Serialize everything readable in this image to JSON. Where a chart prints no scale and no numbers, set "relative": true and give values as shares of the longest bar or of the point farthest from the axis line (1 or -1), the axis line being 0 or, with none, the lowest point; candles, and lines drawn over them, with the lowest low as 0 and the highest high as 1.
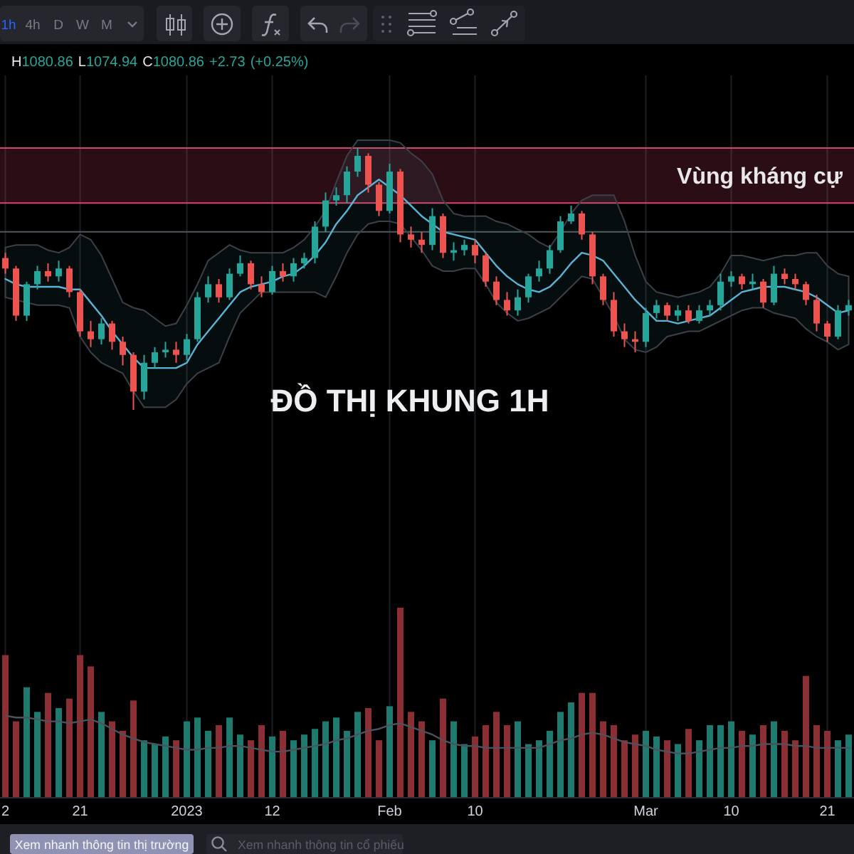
{
  "chart_data": [
    {
      "type": "candlestick",
      "title": "ĐỒ THỊ KHUNG 1H",
      "relative": true,
      "categories": [
        null,
        null,
        null,
        null,
        null,
        null,
        null,
        null,
        null,
        null,
        null,
        null,
        null,
        null,
        null,
        null,
        null,
        null,
        null,
        null,
        null,
        null,
        null,
        null,
        null,
        null,
        null,
        null,
        null,
        null,
        null,
        null,
        null,
        null,
        null,
        null,
        null,
        null,
        null,
        null,
        null,
        null,
        null,
        null,
        null,
        null,
        null,
        null,
        null,
        null,
        null,
        null,
        null,
        null,
        null,
        null,
        null,
        null,
        null,
        null,
        null,
        null,
        null,
        null,
        null,
        null,
        null,
        null,
        null,
        null,
        null,
        null,
        null,
        null,
        null,
        null,
        null,
        null,
        null,
        null
      ],
      "ohlc": [
        [
          0.58,
          0.6,
          0.52,
          0.54
        ],
        [
          0.54,
          0.55,
          0.34,
          0.36
        ],
        [
          0.36,
          0.49,
          0.34,
          0.48
        ],
        [
          0.48,
          0.55,
          0.46,
          0.53
        ],
        [
          0.53,
          0.56,
          0.49,
          0.51
        ],
        [
          0.51,
          0.57,
          0.49,
          0.54
        ],
        [
          0.54,
          0.55,
          0.43,
          0.45
        ],
        [
          0.45,
          0.46,
          0.28,
          0.3
        ],
        [
          0.3,
          0.34,
          0.24,
          0.27
        ],
        [
          0.27,
          0.35,
          0.25,
          0.33
        ],
        [
          0.33,
          0.34,
          0.23,
          0.26
        ],
        [
          0.26,
          0.28,
          0.17,
          0.21
        ],
        [
          0.21,
          0.22,
          0,
          0.07
        ],
        [
          0.07,
          0.21,
          0.04,
          0.18
        ],
        [
          0.18,
          0.24,
          0.16,
          0.22
        ],
        [
          0.22,
          0.26,
          0.2,
          0.23
        ],
        [
          0.23,
          0.26,
          0.18,
          0.21
        ],
        [
          0.21,
          0.29,
          0.19,
          0.27
        ],
        [
          0.27,
          0.45,
          0.26,
          0.43
        ],
        [
          0.43,
          0.51,
          0.41,
          0.48
        ],
        [
          0.48,
          0.5,
          0.41,
          0.43
        ],
        [
          0.43,
          0.54,
          0.42,
          0.52
        ],
        [
          0.52,
          0.59,
          0.51,
          0.56
        ],
        [
          0.56,
          0.57,
          0.46,
          0.48
        ],
        [
          0.48,
          0.51,
          0.43,
          0.45
        ],
        [
          0.45,
          0.55,
          0.44,
          0.53
        ],
        [
          0.53,
          0.56,
          0.49,
          0.51
        ],
        [
          0.51,
          0.58,
          0.49,
          0.56
        ],
        [
          0.56,
          0.6,
          0.54,
          0.58
        ],
        [
          0.58,
          0.72,
          0.56,
          0.7
        ],
        [
          0.7,
          0.83,
          0.68,
          0.8
        ],
        [
          0.8,
          0.85,
          0.78,
          0.82
        ],
        [
          0.82,
          0.93,
          0.79,
          0.91
        ],
        [
          0.91,
          1,
          0.89,
          0.97
        ],
        [
          0.97,
          0.98,
          0.83,
          0.86
        ],
        [
          0.86,
          0.87,
          0.74,
          0.76
        ],
        [
          0.76,
          0.94,
          0.75,
          0.91
        ],
        [
          0.91,
          0.92,
          0.64,
          0.67
        ],
        [
          0.67,
          0.7,
          0.62,
          0.65
        ],
        [
          0.65,
          0.68,
          0.6,
          0.63
        ],
        [
          0.63,
          0.77,
          0.61,
          0.74
        ],
        [
          0.74,
          0.75,
          0.58,
          0.6
        ],
        [
          0.6,
          0.64,
          0.57,
          0.61
        ],
        [
          0.61,
          0.65,
          0.59,
          0.63
        ],
        [
          0.63,
          0.65,
          0.56,
          0.59
        ],
        [
          0.59,
          0.6,
          0.47,
          0.49
        ],
        [
          0.49,
          0.51,
          0.4,
          0.42
        ],
        [
          0.42,
          0.45,
          0.36,
          0.38
        ],
        [
          0.38,
          0.46,
          0.36,
          0.43
        ],
        [
          0.43,
          0.52,
          0.41,
          0.51
        ],
        [
          0.51,
          0.57,
          0.49,
          0.54
        ],
        [
          0.54,
          0.63,
          0.52,
          0.61
        ],
        [
          0.61,
          0.74,
          0.6,
          0.72
        ],
        [
          0.72,
          0.78,
          0.71,
          0.75
        ],
        [
          0.75,
          0.76,
          0.65,
          0.67
        ],
        [
          0.67,
          0.68,
          0.48,
          0.51
        ],
        [
          0.51,
          0.52,
          0.4,
          0.42
        ],
        [
          0.42,
          0.45,
          0.28,
          0.3
        ],
        [
          0.3,
          0.33,
          0.24,
          0.27
        ],
        [
          0.27,
          0.3,
          0.22,
          0.26
        ],
        [
          0.26,
          0.39,
          0.24,
          0.37
        ],
        [
          0.37,
          0.42,
          0.35,
          0.4
        ],
        [
          0.4,
          0.41,
          0.34,
          0.36
        ],
        [
          0.36,
          0.4,
          0.34,
          0.38
        ],
        [
          0.38,
          0.4,
          0.33,
          0.34
        ],
        [
          0.34,
          0.4,
          0.33,
          0.38
        ],
        [
          0.38,
          0.42,
          0.36,
          0.4
        ],
        [
          0.4,
          0.52,
          0.38,
          0.49
        ],
        [
          0.49,
          0.53,
          0.47,
          0.51
        ],
        [
          0.51,
          0.52,
          0.46,
          0.48
        ],
        [
          0.48,
          0.52,
          0.46,
          0.49
        ],
        [
          0.49,
          0.5,
          0.39,
          0.41
        ],
        [
          0.41,
          0.55,
          0.4,
          0.52
        ],
        [
          0.52,
          0.54,
          0.48,
          0.5
        ],
        [
          0.5,
          0.52,
          0.46,
          0.48
        ],
        [
          0.48,
          0.49,
          0.4,
          0.42
        ],
        [
          0.42,
          0.44,
          0.3,
          0.33
        ],
        [
          0.33,
          0.34,
          0.26,
          0.28
        ],
        [
          0.28,
          0.4,
          0.27,
          0.38
        ],
        [
          0.38,
          0.42,
          0.36,
          0.4
        ]
      ],
      "colors": [
        "#ef5350",
        "#ef5350",
        "#26a69a",
        "#26a69a",
        "#ef5350",
        "#26a69a",
        "#ef5350",
        "#ef5350",
        "#ef5350",
        "#26a69a",
        "#ef5350",
        "#ef5350",
        "#ef5350",
        "#26a69a",
        "#26a69a",
        "#26a69a",
        "#ef5350",
        "#26a69a",
        "#26a69a",
        "#26a69a",
        "#ef5350",
        "#26a69a",
        "#26a69a",
        "#ef5350",
        "#ef5350",
        "#26a69a",
        "#ef5350",
        "#26a69a",
        "#26a69a",
        "#26a69a",
        "#26a69a",
        "#26a69a",
        "#26a69a",
        "#26a69a",
        "#ef5350",
        "#ef5350",
        "#26a69a",
        "#ef5350",
        "#ef5350",
        "#ef5350",
        "#26a69a",
        "#ef5350",
        "#26a69a",
        "#26a69a",
        "#ef5350",
        "#ef5350",
        "#ef5350",
        "#ef5350",
        "#26a69a",
        "#26a69a",
        "#26a69a",
        "#26a69a",
        "#26a69a",
        "#26a69a",
        "#ef5350",
        "#ef5350",
        "#ef5350",
        "#ef5350",
        "#ef5350",
        "#ef5350",
        "#26a69a",
        "#26a69a",
        "#ef5350",
        "#26a69a",
        "#ef5350",
        "#26a69a",
        "#26a69a",
        "#26a69a",
        "#26a69a",
        "#ef5350",
        "#26a69a",
        "#ef5350",
        "#26a69a",
        "#ef5350",
        "#ef5350",
        "#ef5350",
        "#ef5350",
        "#ef5350",
        "#26a69a",
        "#26a69a"
      ],
      "series": [
        {
          "type": "line",
          "color": "#5ab4d6",
          "values": [
            0.5,
            0.48,
            0.47,
            0.47,
            0.47,
            0.47,
            0.46,
            0.46,
            0.41,
            0.36,
            0.3,
            0.25,
            0.2,
            0.16,
            0.16,
            0.16,
            0.16,
            0.18,
            0.25,
            0.3,
            0.35,
            0.4,
            0.45,
            0.47,
            0.48,
            0.49,
            0.51,
            0.52,
            0.55,
            0.59,
            0.64,
            0.71,
            0.76,
            0.82,
            0.85,
            0.88,
            0.85,
            0.82,
            0.78,
            0.74,
            0.71,
            0.68,
            0.67,
            0.66,
            0.65,
            0.6,
            0.55,
            0.51,
            0.48,
            0.46,
            0.45,
            0.47,
            0.51,
            0.56,
            0.6,
            0.59,
            0.57,
            0.52,
            0.47,
            0.42,
            0.38,
            0.34,
            0.34,
            0.33,
            0.34,
            0.35,
            0.36,
            0.39,
            0.42,
            0.45,
            0.46,
            0.47,
            0.47,
            0.47,
            0.46,
            0.45,
            0.43,
            0.4,
            0.37,
            0.38
          ],
          "upper": [
            0.62,
            0.63,
            0.63,
            0.63,
            0.61,
            0.6,
            0.62,
            0.67,
            0.65,
            0.59,
            0.5,
            0.41,
            0.39,
            0.38,
            0.35,
            0.32,
            0.33,
            0.4,
            0.48,
            0.57,
            0.6,
            0.63,
            0.61,
            0.6,
            0.6,
            0.6,
            0.6,
            0.62,
            0.65,
            0.7,
            0.76,
            0.87,
            0.97,
            1.03,
            1.03,
            1.03,
            1.03,
            1.02,
            0.98,
            0.95,
            0.9,
            0.8,
            0.75,
            0.74,
            0.74,
            0.74,
            0.72,
            0.71,
            0.69,
            0.67,
            0.64,
            0.62,
            0.68,
            0.75,
            0.8,
            0.82,
            0.82,
            0.82,
            0.72,
            0.59,
            0.49,
            0.45,
            0.44,
            0.43,
            0.44,
            0.45,
            0.47,
            0.52,
            0.59,
            0.59,
            0.58,
            0.57,
            0.58,
            0.59,
            0.59,
            0.6,
            0.6,
            0.55,
            0.52,
            0.51
          ],
          "lower": [
            0.43,
            0.42,
            0.41,
            0.4,
            0.4,
            0.4,
            0.39,
            0.28,
            0.22,
            0.18,
            0.16,
            0.14,
            0.07,
            0.01,
            0.01,
            0.01,
            0.04,
            0.1,
            0.14,
            0.16,
            0.18,
            0.28,
            0.37,
            0.41,
            0.45,
            0.45,
            0.45,
            0.45,
            0.45,
            0.45,
            0.43,
            0.51,
            0.6,
            0.67,
            0.71,
            0.72,
            0.72,
            0.71,
            0.66,
            0.61,
            0.55,
            0.53,
            0.53,
            0.54,
            0.54,
            0.48,
            0.41,
            0.37,
            0.34,
            0.35,
            0.37,
            0.39,
            0.43,
            0.47,
            0.51,
            0.5,
            0.43,
            0.36,
            0.27,
            0.23,
            0.22,
            0.24,
            0.28,
            0.29,
            0.3,
            0.3,
            0.32,
            0.34,
            0.36,
            0.38,
            0.39,
            0.39,
            0.37,
            0.36,
            0.35,
            0.31,
            0.28,
            0.26,
            0.23,
            0.25
          ]
        }
      ],
      "bands": [
        {
          "axis": "y",
          "from": 0.79,
          "to": 1,
          "label": "Vùng kháng cự",
          "color": "#d6456b"
        }
      ],
      "ref_lines": [
        {
          "axis": "y",
          "value": 0.68,
          "color": "#4a5a5e"
        }
      ],
      "annotations": [
        "H1080.86 L1074.94 C1080.86 +2.73 (+0.25%)",
        "1h",
        "4h",
        "D",
        "W",
        "M"
      ]
    },
    {
      "type": "bar",
      "relative": true,
      "tick_labels": "x",
      "grid": "x",
      "categories": [
        "2",
        null,
        null,
        null,
        null,
        null,
        null,
        "21",
        null,
        null,
        null,
        null,
        null,
        null,
        null,
        null,
        null,
        "2023",
        null,
        null,
        null,
        null,
        null,
        null,
        null,
        "12",
        null,
        null,
        null,
        null,
        null,
        null,
        null,
        null,
        null,
        null,
        "Feb",
        null,
        null,
        null,
        null,
        null,
        null,
        null,
        "10",
        null,
        null,
        null,
        null,
        null,
        null,
        null,
        null,
        null,
        null,
        null,
        null,
        null,
        null,
        null,
        "Mar",
        null,
        null,
        null,
        null,
        null,
        null,
        null,
        "10",
        null,
        null,
        null,
        null,
        null,
        null,
        null,
        null,
        "21",
        null,
        null
      ],
      "series": [
        {
          "values": [
            0.75,
            0.4,
            0.58,
            0.45,
            0.55,
            0.47,
            0.52,
            0.75,
            0.69,
            0.45,
            0.4,
            0.35,
            0.51,
            0.3,
            0.28,
            0.32,
            0.3,
            0.4,
            0.42,
            0.35,
            0.38,
            0.42,
            0.33,
            0.3,
            0.38,
            0.32,
            0.35,
            0.3,
            0.33,
            0.36,
            0.4,
            0.42,
            0.35,
            0.45,
            0.47,
            0.3,
            0.48,
            1,
            0.45,
            0.4,
            0.3,
            0.52,
            0.4,
            0.28,
            0.32,
            0.38,
            0.45,
            0.38,
            0.4,
            0.28,
            0.3,
            0.35,
            0.45,
            0.5,
            0.55,
            0.55,
            0.4,
            0.38,
            0.3,
            0.33,
            0.35,
            0.32,
            0.3,
            0.28,
            0.36,
            0.3,
            0.38,
            0.38,
            0.4,
            0.35,
            0.33,
            0.38,
            0.4,
            0.35,
            0.3,
            0.64,
            0.38,
            0.35,
            0.3,
            0.33
          ],
          "colors": [
            "#8c2f35",
            "#8c2f35",
            "#1f7a70",
            "#1f7a70",
            "#8c2f35",
            "#1f7a70",
            "#8c2f35",
            "#8c2f35",
            "#8c2f35",
            "#1f7a70",
            "#8c2f35",
            "#8c2f35",
            "#8c2f35",
            "#1f7a70",
            "#1f7a70",
            "#1f7a70",
            "#8c2f35",
            "#1f7a70",
            "#1f7a70",
            "#1f7a70",
            "#8c2f35",
            "#1f7a70",
            "#1f7a70",
            "#8c2f35",
            "#8c2f35",
            "#1f7a70",
            "#8c2f35",
            "#1f7a70",
            "#1f7a70",
            "#1f7a70",
            "#1f7a70",
            "#1f7a70",
            "#1f7a70",
            "#1f7a70",
            "#8c2f35",
            "#8c2f35",
            "#1f7a70",
            "#8c2f35",
            "#8c2f35",
            "#8c2f35",
            "#1f7a70",
            "#8c2f35",
            "#1f7a70",
            "#1f7a70",
            "#8c2f35",
            "#8c2f35",
            "#8c2f35",
            "#8c2f35",
            "#1f7a70",
            "#1f7a70",
            "#1f7a70",
            "#1f7a70",
            "#1f7a70",
            "#1f7a70",
            "#8c2f35",
            "#8c2f35",
            "#8c2f35",
            "#8c2f35",
            "#8c2f35",
            "#8c2f35",
            "#1f7a70",
            "#1f7a70",
            "#8c2f35",
            "#1f7a70",
            "#8c2f35",
            "#1f7a70",
            "#1f7a70",
            "#1f7a70",
            "#1f7a70",
            "#8c2f35",
            "#1f7a70",
            "#8c2f35",
            "#1f7a70",
            "#8c2f35",
            "#8c2f35",
            "#8c2f35",
            "#8c2f35",
            "#8c2f35",
            "#1f7a70",
            "#1f7a70"
          ]
        },
        {
          "type": "line",
          "color": "#4e525c",
          "values": [
            0.43,
            0.42,
            0.42,
            0.41,
            0.4,
            0.4,
            0.39,
            0.4,
            0.41,
            0.39,
            0.36,
            0.33,
            0.31,
            0.29,
            0.28,
            0.27,
            0.26,
            0.25,
            0.25,
            0.26,
            0.26,
            0.27,
            0.27,
            0.26,
            0.25,
            0.24,
            0.24,
            0.25,
            0.26,
            0.27,
            0.28,
            0.3,
            0.31,
            0.33,
            0.35,
            0.36,
            0.38,
            0.39,
            0.37,
            0.35,
            0.33,
            0.3,
            0.28,
            0.27,
            0.27,
            0.26,
            0.26,
            0.26,
            0.26,
            0.26,
            0.26,
            0.28,
            0.3,
            0.31,
            0.33,
            0.34,
            0.33,
            0.31,
            0.29,
            0.28,
            0.27,
            0.25,
            0.24,
            0.23,
            0.23,
            0.24,
            0.25,
            0.26,
            0.26,
            0.27,
            0.27,
            0.28,
            0.28,
            0.28,
            0.27,
            0.27,
            0.26,
            0.26,
            0.26,
            0.26
          ]
        }
      ],
      "annotations": [
        "Xem nhanh thông tin thị trường",
        "Xem nhanh thông tin cổ phiếu"
      ]
    }
  ]
}
